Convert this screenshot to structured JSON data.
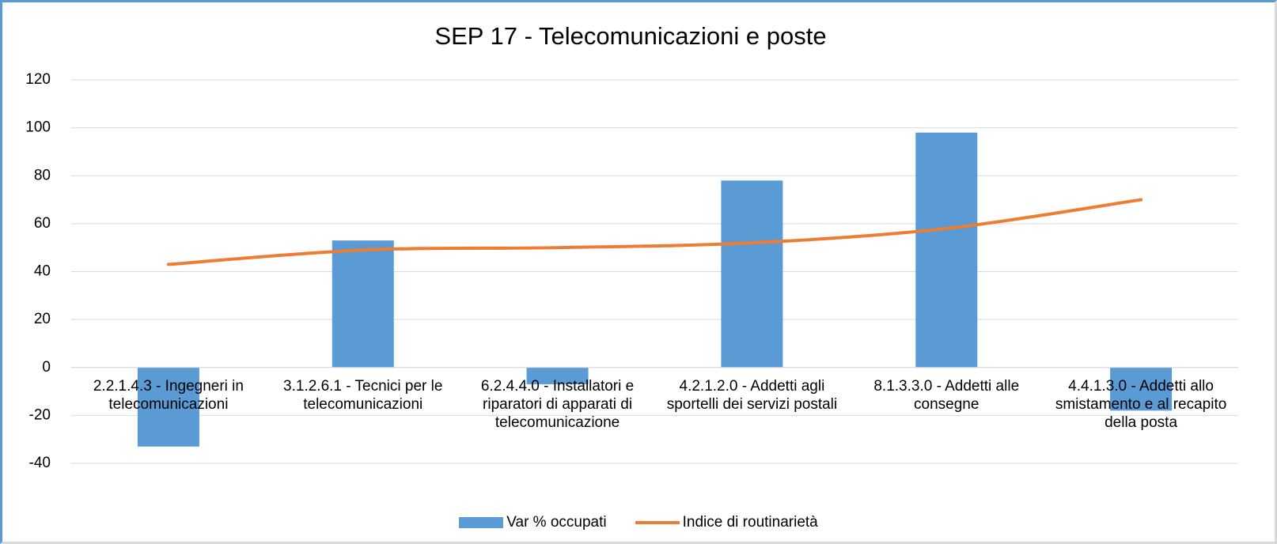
{
  "chart_data": {
    "type": "combo",
    "title": "SEP 17 - Telecomunicazioni e poste",
    "categories": [
      "2.2.1.4.3 - Ingegneri in telecomunicazioni",
      "3.1.2.6.1 - Tecnici per le telecomunicazioni",
      "6.2.4.4.0 - Installatori e riparatori di apparati di telecomunicazione",
      "4.2.1.2.0 - Addetti agli sportelli dei servizi postali",
      "8.1.3.3.0 - Addetti alle consegne",
      "4.4.1.3.0 - Addetti allo smistamento e al recapito della posta"
    ],
    "series": [
      {
        "name": "Var % occupati",
        "type": "bar",
        "color": "#5b9bd5",
        "values": [
          -33,
          53,
          -7,
          78,
          98,
          -18
        ]
      },
      {
        "name": "Indice di routinarietà",
        "type": "line",
        "color": "#ed7d31",
        "values": [
          43,
          49,
          50,
          52,
          58,
          70
        ]
      }
    ],
    "ylim": [
      -40,
      120
    ],
    "yticks": [
      -40,
      -20,
      0,
      20,
      40,
      60,
      80,
      100,
      120
    ],
    "grid": true,
    "legend": "bottom"
  }
}
